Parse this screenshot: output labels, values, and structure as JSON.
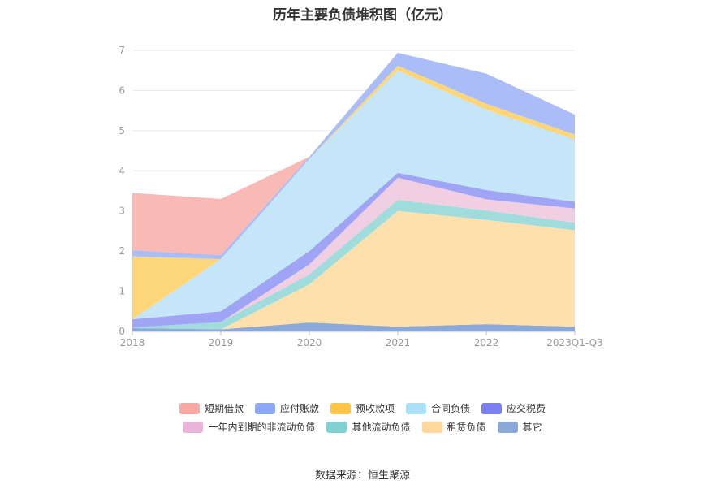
{
  "chart_data": {
    "type": "area",
    "stacked": true,
    "title": "历年主要负债堆积图（亿元）",
    "categories": [
      "2018",
      "2019",
      "2020",
      "2021",
      "2022",
      "2023Q1-Q3"
    ],
    "ylim": [
      0,
      7
    ],
    "yticks": [
      0,
      1,
      2,
      3,
      4,
      5,
      6,
      7
    ],
    "grid": true,
    "legend_position": "bottom",
    "series": [
      {
        "name": "其它",
        "color": "#8aa8d8",
        "values": [
          0.08,
          0.05,
          0.22,
          0.12,
          0.18,
          0.12
        ]
      },
      {
        "name": "租赁负债",
        "color": "#fde0ab",
        "values": [
          0.0,
          0.0,
          0.95,
          2.88,
          2.6,
          2.4
        ]
      },
      {
        "name": "其他流动负债",
        "color": "#a0dcdc",
        "values": [
          0.02,
          0.18,
          0.25,
          0.28,
          0.23,
          0.19
        ]
      },
      {
        "name": "一年内到期的非流动负债",
        "color": "#f0cfe3",
        "values": [
          0.0,
          0.0,
          0.25,
          0.55,
          0.28,
          0.35
        ]
      },
      {
        "name": "应交税费",
        "color": "#a0a4f5",
        "values": [
          0.2,
          0.27,
          0.33,
          0.12,
          0.23,
          0.17
        ]
      },
      {
        "name": "合同负债",
        "color": "#c4e6f8",
        "values": [
          0.0,
          1.3,
          2.3,
          2.55,
          2.0,
          1.55
        ]
      },
      {
        "name": "预收款项",
        "color": "#fdd67a",
        "values": [
          1.57,
          0.0,
          0.0,
          0.12,
          0.15,
          0.12
        ]
      },
      {
        "name": "应付账款",
        "color": "#aabdf8",
        "values": [
          0.15,
          0.1,
          0.05,
          0.32,
          0.75,
          0.5
        ]
      },
      {
        "name": "短期借款",
        "color": "#f9b9b5",
        "values": [
          1.43,
          1.4,
          0.0,
          0.0,
          0.0,
          0.0
        ]
      }
    ]
  },
  "legend": {
    "row1": [
      {
        "label": "短期借款",
        "color": "#f9a8a4"
      },
      {
        "label": "应付账款",
        "color": "#8ca7f4"
      },
      {
        "label": "预收款项",
        "color": "#fdc545"
      },
      {
        "label": "合同负债",
        "color": "#ace0f7"
      },
      {
        "label": "应交税费",
        "color": "#7b80f0"
      }
    ],
    "row2": [
      {
        "label": "一年内到期的非流动负债",
        "color": "#eab4d8"
      },
      {
        "label": "其他流动负债",
        "color": "#80d2d2"
      },
      {
        "label": "租赁负债",
        "color": "#fdd89a"
      },
      {
        "label": "其它",
        "color": "#8aa8d8"
      }
    ]
  },
  "source": "数据来源：恒生聚源"
}
